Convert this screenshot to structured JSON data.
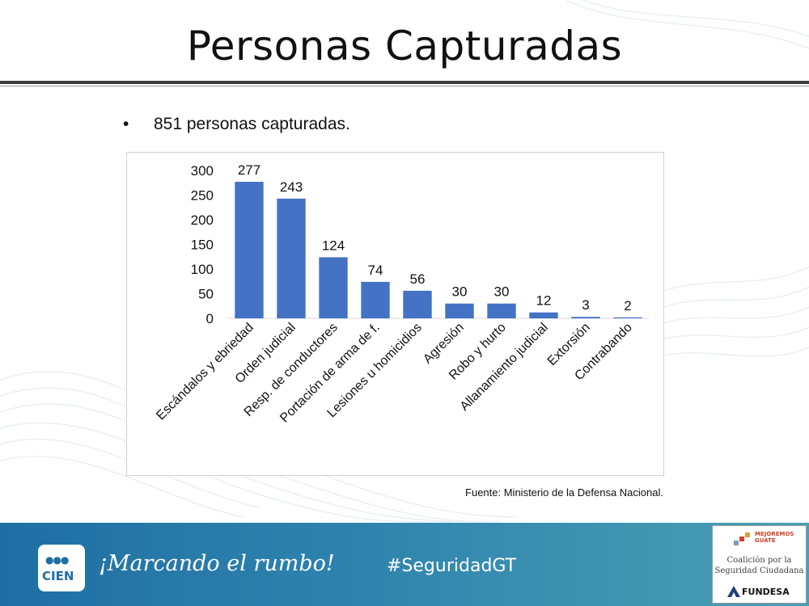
{
  "title": "Personas Capturadas",
  "bullet": {
    "marker": "•",
    "text": "851 personas capturadas."
  },
  "source": "Fuente: Ministerio de la Defensa Nacional.",
  "chart_data": {
    "type": "bar",
    "categories": [
      "Escándalos y ebriedad",
      "Orden judicial",
      "Resp. de conductores",
      "Portación de arma de f.",
      "Lesiones u homicidios",
      "Agresión",
      "Robo y hurto",
      "Allanamiento judicial",
      "Extorsión",
      "Contrabando"
    ],
    "values": [
      277,
      243,
      124,
      74,
      56,
      30,
      30,
      12,
      3,
      2
    ],
    "data_labels": [
      "277",
      "243",
      "124",
      "74",
      "56",
      "30",
      "30",
      "12",
      "3",
      "2"
    ],
    "ylim": [
      0,
      300
    ],
    "yticks": [
      0,
      50,
      100,
      150,
      200,
      250,
      300
    ],
    "title": "",
    "xlabel": "",
    "ylabel": "",
    "grid": false,
    "bar_color": "#4472c4"
  },
  "footer": {
    "logo_text": "CIEN",
    "slogan": "¡Marcando el rumbo!",
    "hashtag": "#SeguridadGT",
    "partner_line1": "MEJOREMOS",
    "partner_line2": "GUATE",
    "partner_coalition_1": "Coalición por la",
    "partner_coalition_2": "Seguridad Ciudadana",
    "partner_org": "FUNDESA",
    "color_start": "#1f6fa3",
    "color_end": "#4aa0b3"
  }
}
